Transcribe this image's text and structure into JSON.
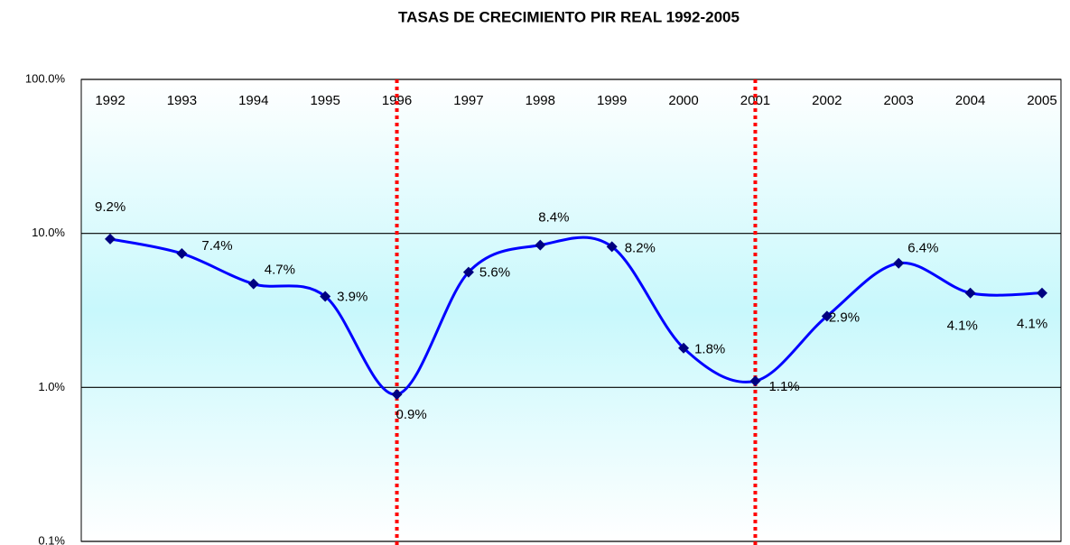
{
  "chart_data": {
    "type": "line",
    "title": "TASAS DE CRECIMIENTO PIR REAL 1992-2005",
    "categories": [
      "1992",
      "1993",
      "1994",
      "1995",
      "1996",
      "1997",
      "1998",
      "1999",
      "2000",
      "2001",
      "2002",
      "2003",
      "2004",
      "2005"
    ],
    "series": [
      {
        "color": "#0000ff",
        "marker_color": "#000080",
        "values": [
          9.2,
          7.4,
          4.7,
          3.9,
          0.9,
          5.6,
          8.4,
          8.2,
          1.8,
          1.1,
          2.9,
          6.4,
          4.1,
          4.1
        ],
        "value_labels": [
          "9.2%",
          "7.4%",
          "4.7%",
          "3.9%",
          "0.9%",
          "5.6%",
          "8.4%",
          "8.2%",
          "1.8%",
          "1.1%",
          "2.9%",
          "6.4%",
          "4.1%",
          "4.1%"
        ]
      }
    ],
    "log_scale": true,
    "ylim": [
      0.1,
      100
    ],
    "yticks": [
      {
        "value": 0.1,
        "label": "0.1%"
      },
      {
        "value": 1,
        "label": "1.0%"
      },
      {
        "value": 10,
        "label": "10.0%"
      },
      {
        "value": 100,
        "label": "100.0%"
      }
    ],
    "grid": true,
    "highlight_categories": [
      "1996",
      "2001"
    ],
    "highlight_color": "#ff0000"
  }
}
